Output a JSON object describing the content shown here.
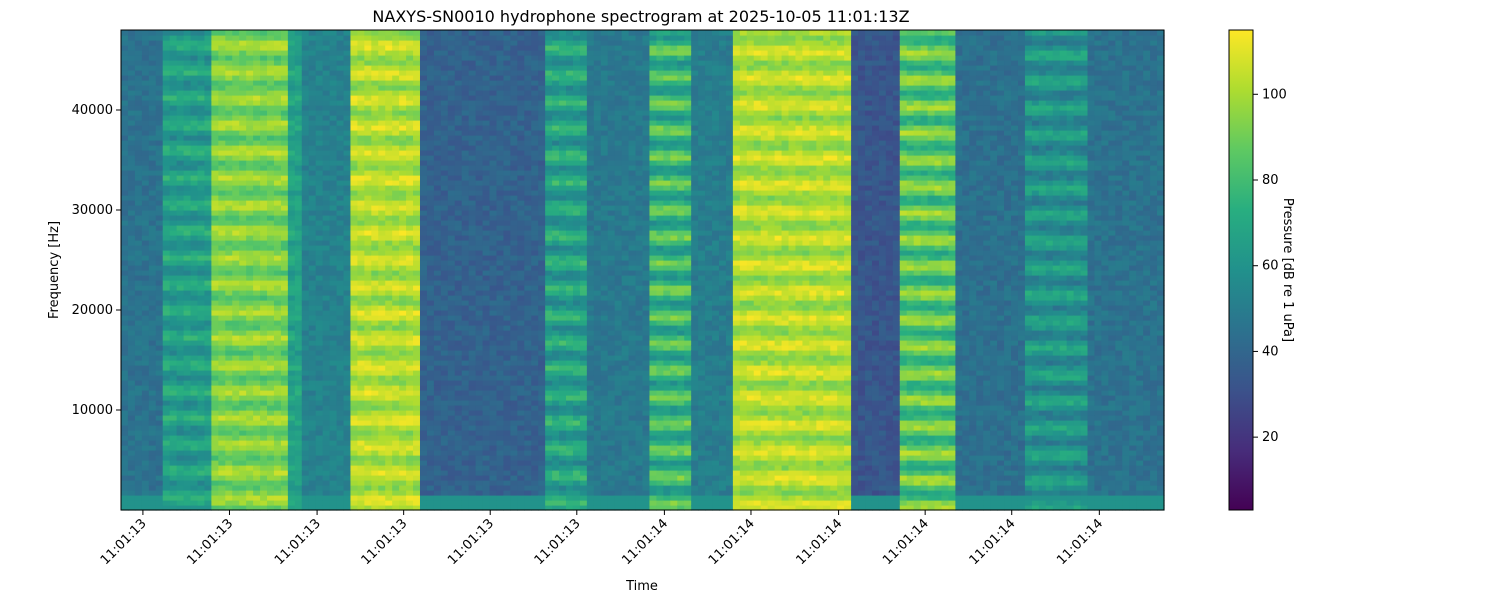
{
  "chart_data": {
    "type": "heatmap",
    "title": "NAXYS-SN0010 hydrophone spectrogram at 2025-10-05 11:01:13Z",
    "xlabel": "Time",
    "ylabel": "Frequency [Hz]",
    "ylim": [
      0,
      48000
    ],
    "y_ticks": [
      10000,
      20000,
      30000,
      40000
    ],
    "x_tick_labels": [
      "11:01:13",
      "11:01:13",
      "11:01:13",
      "11:01:13",
      "11:01:13",
      "11:01:13",
      "11:01:14",
      "11:01:14",
      "11:01:14",
      "11:01:14",
      "11:01:14",
      "11:01:14"
    ],
    "x_tick_fractions": [
      0.021,
      0.104,
      0.188,
      0.271,
      0.354,
      0.437,
      0.521,
      0.604,
      0.688,
      0.771,
      0.854,
      0.938
    ],
    "colorbar": {
      "label": "Pressure [dB re 1 uPa]",
      "range": [
        3,
        115
      ],
      "ticks": [
        20,
        40,
        60,
        80,
        100
      ],
      "colormap": "viridis"
    },
    "grid": false,
    "time_segments": [
      {
        "t_start": 0.0,
        "t_end": 0.04,
        "level_db": 45,
        "harmonic_depth": 0.0
      },
      {
        "t_start": 0.04,
        "t_end": 0.085,
        "level_db": 74,
        "harmonic_depth": 0.25
      },
      {
        "t_start": 0.085,
        "t_end": 0.16,
        "level_db": 102,
        "harmonic_depth": 0.18
      },
      {
        "t_start": 0.16,
        "t_end": 0.175,
        "level_db": 70,
        "harmonic_depth": 0.1
      },
      {
        "t_start": 0.175,
        "t_end": 0.22,
        "level_db": 52,
        "harmonic_depth": 0.0
      },
      {
        "t_start": 0.22,
        "t_end": 0.29,
        "level_db": 110,
        "harmonic_depth": 0.15
      },
      {
        "t_start": 0.29,
        "t_end": 0.41,
        "level_db": 38,
        "harmonic_depth": 0.0
      },
      {
        "t_start": 0.41,
        "t_end": 0.45,
        "level_db": 78,
        "harmonic_depth": 0.3
      },
      {
        "t_start": 0.45,
        "t_end": 0.505,
        "level_db": 48,
        "harmonic_depth": 0.0
      },
      {
        "t_start": 0.505,
        "t_end": 0.545,
        "level_db": 92,
        "harmonic_depth": 0.35
      },
      {
        "t_start": 0.545,
        "t_end": 0.585,
        "level_db": 50,
        "harmonic_depth": 0.0
      },
      {
        "t_start": 0.585,
        "t_end": 0.7,
        "level_db": 110,
        "harmonic_depth": 0.15
      },
      {
        "t_start": 0.7,
        "t_end": 0.745,
        "level_db": 33,
        "harmonic_depth": 0.0
      },
      {
        "t_start": 0.745,
        "t_end": 0.8,
        "level_db": 100,
        "harmonic_depth": 0.3
      },
      {
        "t_start": 0.8,
        "t_end": 0.87,
        "level_db": 44,
        "harmonic_depth": 0.0
      },
      {
        "t_start": 0.87,
        "t_end": 0.925,
        "level_db": 70,
        "harmonic_depth": 0.3
      },
      {
        "t_start": 0.925,
        "t_end": 1.0,
        "level_db": 45,
        "harmonic_depth": 0.0
      }
    ]
  }
}
